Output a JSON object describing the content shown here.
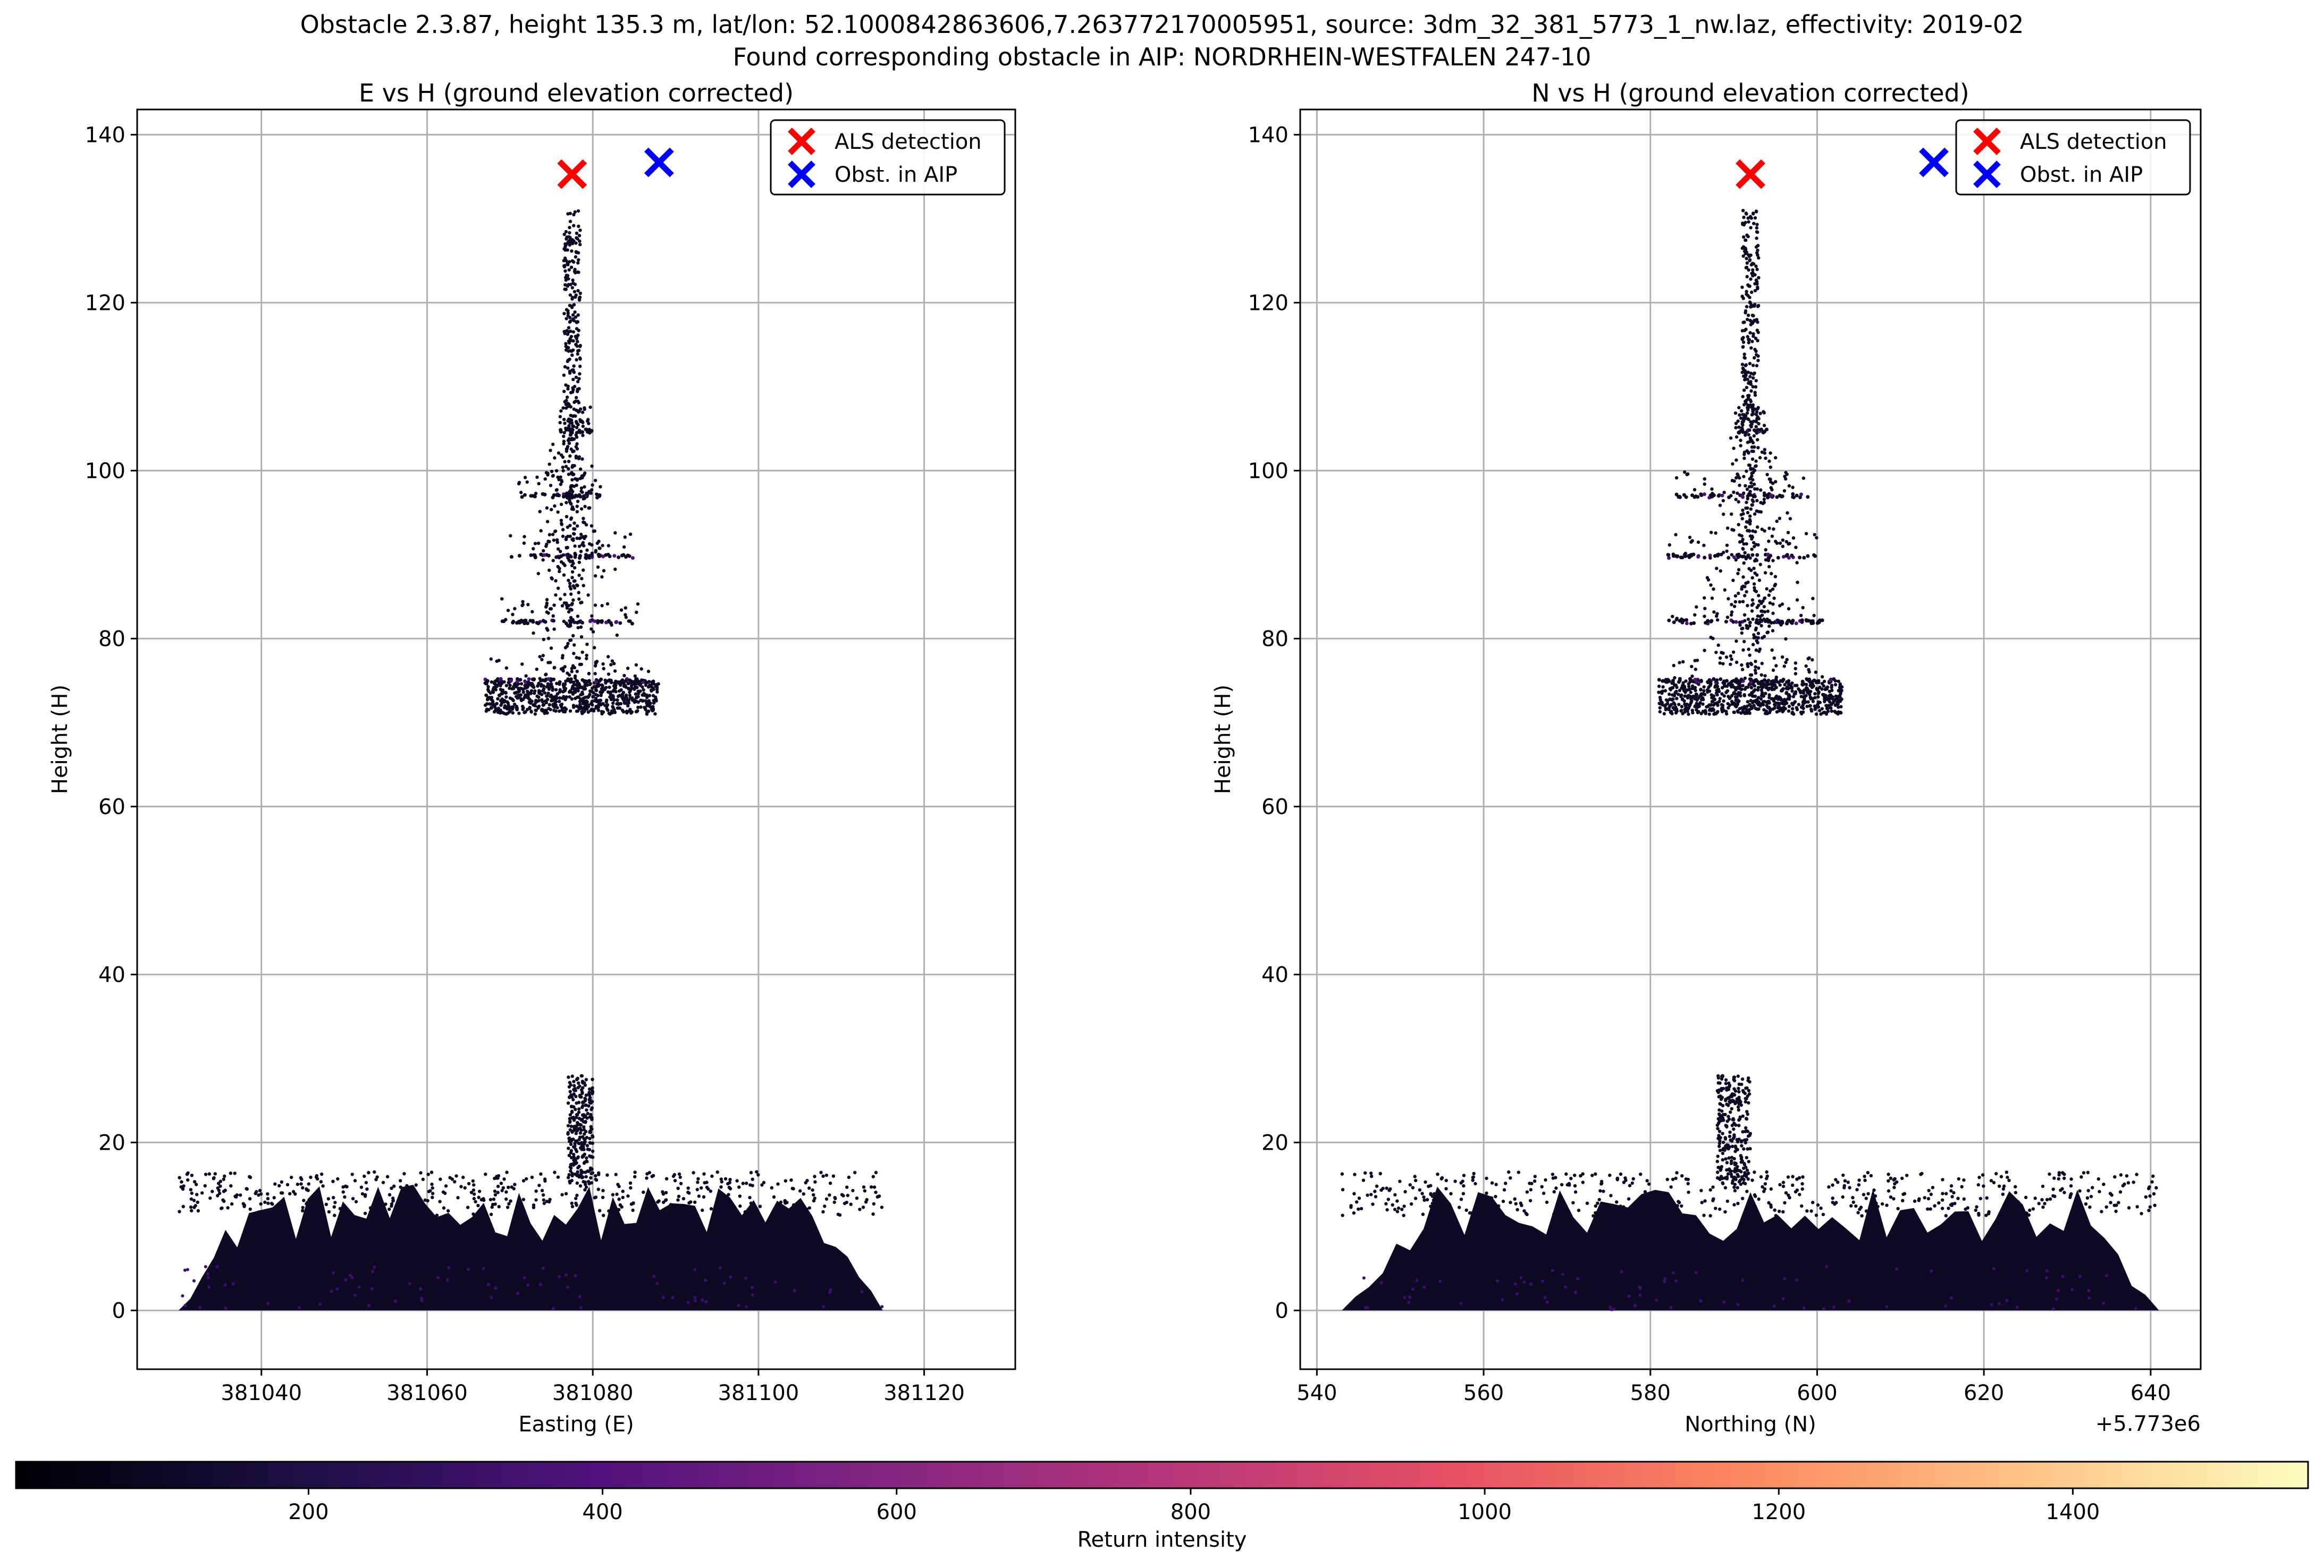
{
  "figure": {
    "suptitle_line1": "Obstacle 2.3.87, height 135.3 m, lat/lon: 52.1000842863606,7.263772170005951, source: 3dm_32_381_5773_1_nw.laz, effectivity: 2019-02",
    "suptitle_line2": "Found corresponding obstacle in AIP: NORDRHEIN-WESTFALEN 247-10"
  },
  "colors": {
    "als_marker": "#ff0000",
    "aip_marker": "#0000ff",
    "grid": "#b0b0b0",
    "points": "#0f0a24"
  },
  "chart_data": [
    {
      "type": "scatter",
      "title": "E vs H (ground elevation corrected)",
      "xlabel": "Easting (E)",
      "ylabel": "Height (H)",
      "xlim": [
        381025,
        381131
      ],
      "ylim": [
        -7,
        143
      ],
      "x_ticks": [
        381040,
        381060,
        381080,
        381100,
        381120
      ],
      "y_ticks": [
        0,
        20,
        40,
        60,
        80,
        100,
        120,
        140
      ],
      "x_offset_label": "",
      "grid": true,
      "legend_position": "upper right",
      "series": [
        {
          "name": "ALS detection",
          "marker": "x",
          "color": "#ff0000",
          "points": [
            [
              381077.5,
              135.3
            ]
          ]
        },
        {
          "name": "Obst. in AIP",
          "marker": "x",
          "color": "#0000ff",
          "points": [
            [
              381088,
              136.7
            ]
          ]
        }
      ],
      "point_cloud": {
        "color_field": "Return intensity",
        "regions": [
          {
            "kind": "vegetation",
            "x": [
              381030,
              381115
            ],
            "y": [
              0,
              15
            ]
          },
          {
            "kind": "mast_lower",
            "x": [
              381077,
              381080
            ],
            "y": [
              15,
              28
            ]
          },
          {
            "kind": "tower_base",
            "x": [
              381067,
              381088
            ],
            "y": [
              71,
              75
            ]
          },
          {
            "kind": "platform",
            "x": [
              381067,
              381087
            ],
            "y": [
              75,
              75
            ]
          },
          {
            "kind": "platform",
            "x": [
              381069,
              381086
            ],
            "y": [
              82,
              82
            ]
          },
          {
            "kind": "platform",
            "x": [
              381070,
              381085
            ],
            "y": [
              89.8,
              89.8
            ]
          },
          {
            "kind": "platform",
            "x": [
              381071,
              381081
            ],
            "y": [
              97,
              97
            ]
          },
          {
            "kind": "platform",
            "x": [
              381076,
              381080
            ],
            "y": [
              104.7,
              104.7
            ]
          },
          {
            "kind": "mast_upper",
            "x": [
              381076.5,
              381078.5
            ],
            "y": [
              105,
              131
            ]
          }
        ]
      }
    },
    {
      "type": "scatter",
      "title": "N vs H (ground elevation corrected)",
      "xlabel": "Northing (N)",
      "ylabel": "Height (H)",
      "xlim": [
        5773538,
        5773646
      ],
      "ylim": [
        -7,
        143
      ],
      "x_ticks": [
        540,
        560,
        580,
        600,
        620,
        640
      ],
      "y_ticks": [
        0,
        20,
        40,
        60,
        80,
        100,
        120,
        140
      ],
      "x_offset_label": "+5.773e6",
      "grid": true,
      "legend_position": "upper right",
      "series": [
        {
          "name": "ALS detection",
          "marker": "x",
          "color": "#ff0000",
          "points": [
            [
              5773592,
              135.3
            ]
          ]
        },
        {
          "name": "Obst. in AIP",
          "marker": "x",
          "color": "#0000ff",
          "points": [
            [
              5773614,
              136.7
            ]
          ]
        }
      ],
      "point_cloud": {
        "color_field": "Return intensity",
        "regions": [
          {
            "kind": "vegetation",
            "x": [
              5773543,
              5773641
            ],
            "y": [
              0,
              15
            ]
          },
          {
            "kind": "mast_lower",
            "x": [
              5773588,
              5773592
            ],
            "y": [
              15,
              28
            ]
          },
          {
            "kind": "tower_base",
            "x": [
              5773581,
              5773603
            ],
            "y": [
              71,
              75
            ]
          },
          {
            "kind": "platform",
            "x": [
              5773581,
              5773602
            ],
            "y": [
              75,
              75
            ]
          },
          {
            "kind": "platform",
            "x": [
              5773582,
              5773601
            ],
            "y": [
              82,
              82
            ]
          },
          {
            "kind": "platform",
            "x": [
              5773582,
              5773600
            ],
            "y": [
              89.8,
              89.8
            ]
          },
          {
            "kind": "platform",
            "x": [
              5773583,
              5773599
            ],
            "y": [
              97,
              97
            ]
          },
          {
            "kind": "platform",
            "x": [
              5773590,
              5773594
            ],
            "y": [
              104.7,
              104.7
            ]
          },
          {
            "kind": "mast_upper",
            "x": [
              5773591,
              5773593
            ],
            "y": [
              105,
              131
            ]
          }
        ]
      }
    }
  ],
  "colorbar": {
    "label": "Return intensity",
    "min": 1,
    "max": 1560,
    "ticks": [
      200,
      400,
      600,
      800,
      1000,
      1200,
      1400
    ],
    "colormap": "magma",
    "colormap_stops": [
      "#000004",
      "#1c1044",
      "#4f127b",
      "#812581",
      "#b5367a",
      "#e55064",
      "#fb8761",
      "#fec287",
      "#fcfdbf"
    ]
  }
}
